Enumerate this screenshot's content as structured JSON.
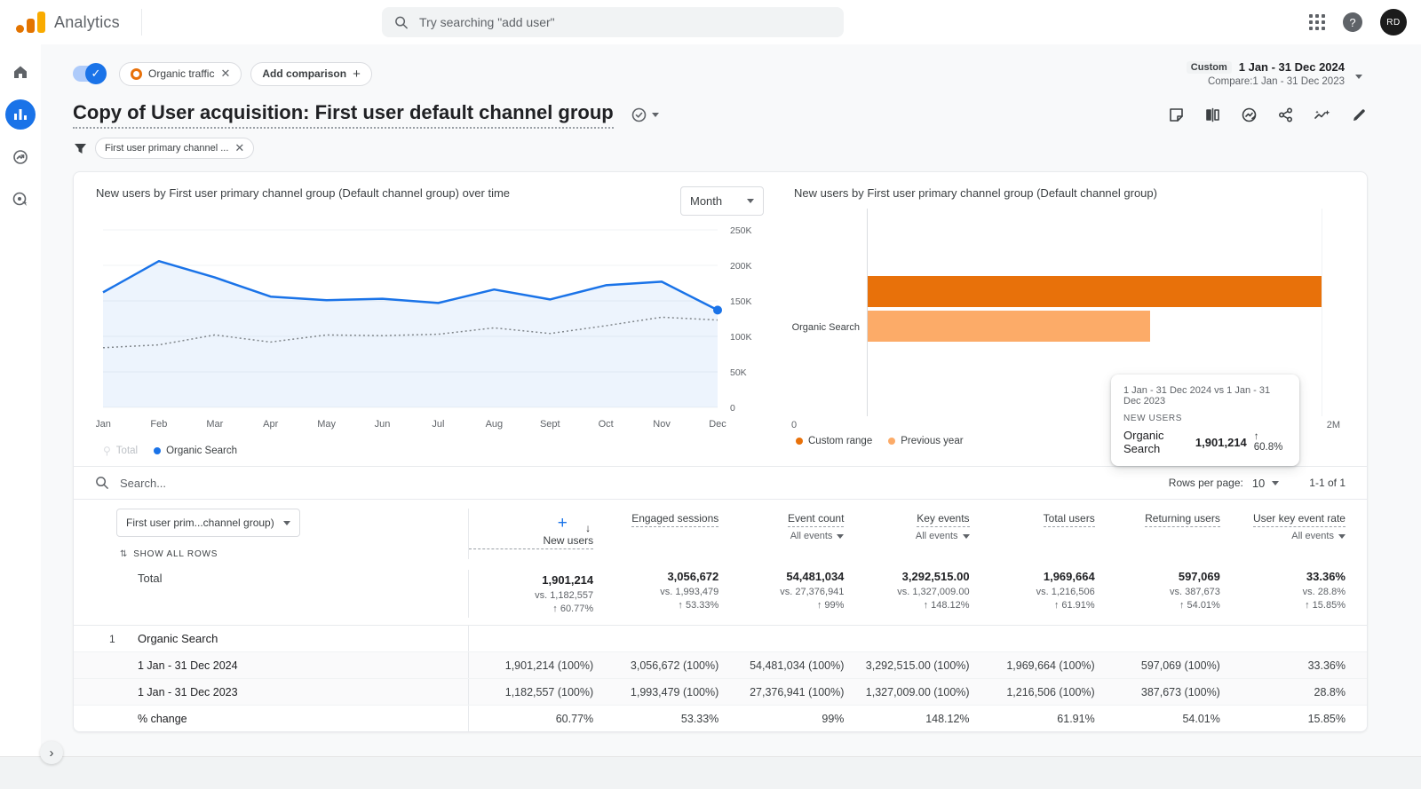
{
  "app": {
    "name": "Analytics",
    "search_placeholder": "Try searching \"add user\"",
    "avatar_text": "RD",
    "accent_color": "#1a73e8"
  },
  "sidebar": {
    "items": [
      {
        "id": "home",
        "icon": "home-icon"
      },
      {
        "id": "reports",
        "icon": "reports-icon",
        "active": true
      },
      {
        "id": "explore",
        "icon": "explore-icon"
      },
      {
        "id": "advertising",
        "icon": "advertising-icon"
      }
    ]
  },
  "comparison_bar": {
    "chip_label": "Organic traffic",
    "add_comparison_label": "Add comparison",
    "date_badge": "Custom",
    "date_range": "1 Jan - 31 Dec 2024",
    "compare_range": "Compare:1 Jan - 31 Dec 2023"
  },
  "report": {
    "title": "Copy of User acquisition: First user default channel group",
    "filter_chip": "First user primary channel ..."
  },
  "chart_data": [
    {
      "type": "line",
      "title": "New users by First user primary channel group (Default channel group) over time",
      "interval_selector": "Month",
      "x": [
        "Jan",
        "Feb",
        "Mar",
        "Apr",
        "May",
        "Jun",
        "Jul",
        "Aug",
        "Sept",
        "Oct",
        "Nov",
        "Dec"
      ],
      "ylim": [
        0,
        250000
      ],
      "yticks": [
        "250K",
        "200K",
        "150K",
        "100K",
        "50K",
        "0"
      ],
      "grid": true,
      "series": [
        {
          "name": "Organic Search (1 Jan - 31 Dec 2024)",
          "style": "solid",
          "color": "#1a73e8",
          "values": [
            162000,
            206000,
            183000,
            156000,
            151000,
            153000,
            147000,
            166000,
            152000,
            172000,
            177000,
            137000
          ]
        },
        {
          "name": "Organic Search (1 Jan - 31 Dec 2023)",
          "style": "dotted",
          "color": "#80868b",
          "values": [
            84000,
            88000,
            102000,
            92000,
            102000,
            101000,
            103000,
            112000,
            104000,
            115000,
            127000,
            123000
          ]
        }
      ],
      "legend": [
        {
          "label": "Total",
          "disabled": true
        },
        {
          "label": "Organic Search",
          "color": "#1a73e8"
        }
      ],
      "legend_position": "bottom-left"
    },
    {
      "type": "bar",
      "title": "New users by First user primary channel group (Default channel group)",
      "categories": [
        "Organic Search"
      ],
      "series": [
        {
          "name": "Custom range",
          "color": "#e8710a",
          "values": [
            1901214
          ]
        },
        {
          "name": "Previous year",
          "color": "#fcab68",
          "values": [
            1182557
          ]
        }
      ],
      "xlim": [
        0,
        2000000
      ],
      "xticks": [
        "0",
        "2M"
      ],
      "legend_position": "bottom-left",
      "tooltip": {
        "title": "1 Jan - 31 Dec 2024 vs 1 Jan - 31 Dec 2023",
        "metric": "NEW USERS",
        "row_label": "Organic Search",
        "value": "1,901,214",
        "change": "↑ 60.8%"
      }
    }
  ],
  "table": {
    "search_placeholder": "Search...",
    "rows_per_page_label": "Rows per page:",
    "rows_per_page_value": "10",
    "pagination": "1-1 of 1",
    "dimension_selector": "First user prim...channel group)",
    "show_all_rows": "SHOW ALL ROWS",
    "columns": [
      {
        "label": "New users",
        "sorted": true,
        "sub": ""
      },
      {
        "label": "Engaged sessions",
        "sub": ""
      },
      {
        "label": "Event count",
        "sub": "All events"
      },
      {
        "label": "Key events",
        "sub": "All events"
      },
      {
        "label": "Total users",
        "sub": ""
      },
      {
        "label": "Returning users",
        "sub": ""
      },
      {
        "label": "User key event rate",
        "sub": "All events"
      }
    ],
    "total_row": {
      "label": "Total",
      "metrics": [
        {
          "value": "1,901,214",
          "vs": "vs. 1,182,557",
          "change": "↑ 60.77%"
        },
        {
          "value": "3,056,672",
          "vs": "vs. 1,993,479",
          "change": "↑ 53.33%"
        },
        {
          "value": "54,481,034",
          "vs": "vs. 27,376,941",
          "change": "↑ 99%"
        },
        {
          "value": "3,292,515.00",
          "vs": "vs. 1,327,009.00",
          "change": "↑ 148.12%"
        },
        {
          "value": "1,969,664",
          "vs": "vs. 1,216,506",
          "change": "↑ 61.91%"
        },
        {
          "value": "597,069",
          "vs": "vs. 387,673",
          "change": "↑ 54.01%"
        },
        {
          "value": "33.36%",
          "vs": "vs. 28.8%",
          "change": "↑ 15.85%"
        }
      ]
    },
    "group_rows": [
      {
        "index": "1",
        "label": "Organic Search",
        "sub_rows": [
          {
            "label": "1 Jan - 31 Dec 2024",
            "values": [
              "1,901,214 (100%)",
              "3,056,672 (100%)",
              "54,481,034 (100%)",
              "3,292,515.00 (100%)",
              "1,969,664 (100%)",
              "597,069 (100%)",
              "33.36%"
            ]
          },
          {
            "label": "1 Jan - 31 Dec 2023",
            "values": [
              "1,182,557 (100%)",
              "1,993,479 (100%)",
              "27,376,941 (100%)",
              "1,327,009.00 (100%)",
              "1,216,506 (100%)",
              "387,673 (100%)",
              "28.8%"
            ]
          },
          {
            "label": "% change",
            "values": [
              "60.77%",
              "53.33%",
              "99%",
              "148.12%",
              "61.91%",
              "54.01%",
              "15.85%"
            ]
          }
        ]
      }
    ]
  }
}
